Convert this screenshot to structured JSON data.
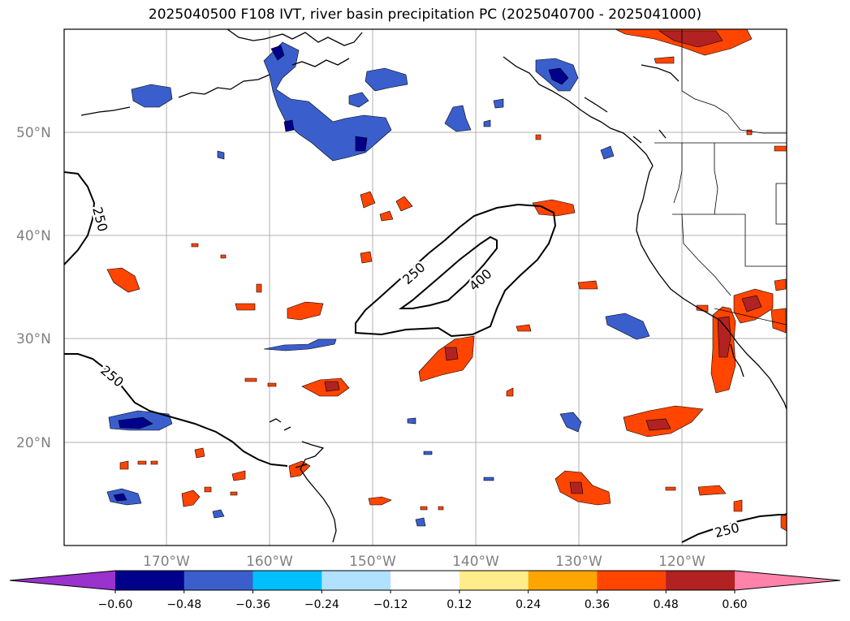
{
  "title": "2025040500 F108 IVT, river basin precipitation PC (2025040700 - 2025041000)",
  "map": {
    "longitude_labels": [
      "170°W",
      "160°W",
      "150°W",
      "140°W",
      "130°W",
      "120°W"
    ],
    "latitude_labels": [
      "50°N",
      "40°N",
      "30°N",
      "20°N"
    ],
    "ivt_contour_labels": [
      "250",
      "250",
      "400",
      "250",
      "250"
    ]
  },
  "colorbar": {
    "tick_labels": [
      "−0.60",
      "−0.48",
      "−0.36",
      "−0.24",
      "−0.12",
      "0.12",
      "0.24",
      "0.36",
      "0.48",
      "0.60"
    ],
    "colors": [
      "#9a32cd",
      "#00008b",
      "#3a5fcd",
      "#00bfff",
      "#b0e2ff",
      "#ffffff",
      "#ffec8b",
      "#ffa500",
      "#ff4500",
      "#b22222",
      "#ff82ab"
    ]
  }
}
